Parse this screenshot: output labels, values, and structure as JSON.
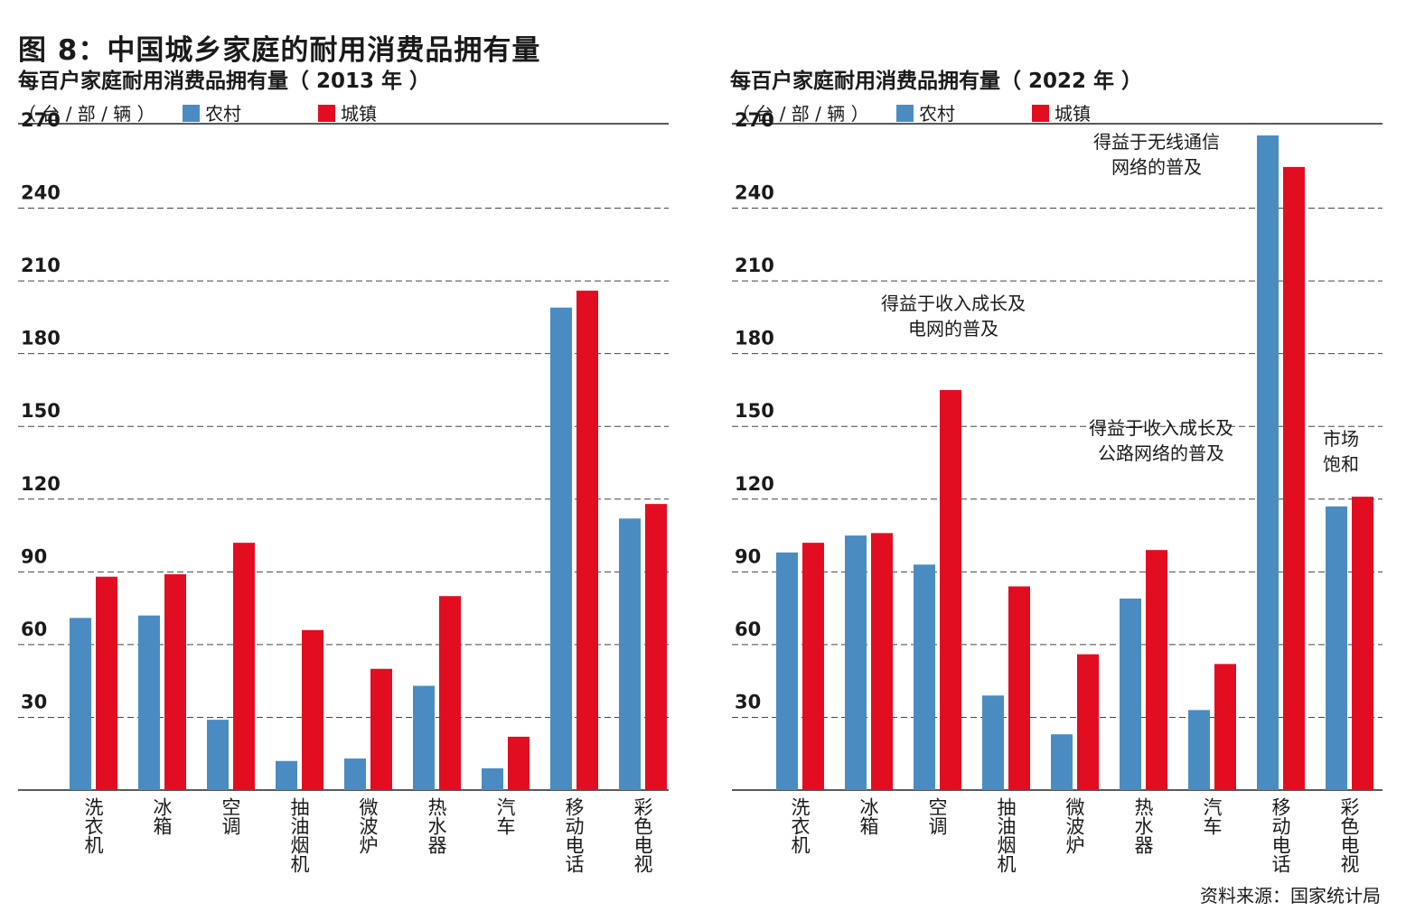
{
  "title": "图 8：中国城乡家庭的耐用消费品拥有量",
  "unit_label": "（ 台 / 部 / 辆 ）",
  "legend": {
    "rural": "农村",
    "urban": "城镇"
  },
  "colors": {
    "rural": "#4a8cc2",
    "urban": "#e30d22",
    "grid": "#444444",
    "axis": "#222222"
  },
  "source": "资料来源：国家统计局",
  "chart_data": [
    {
      "type": "bar",
      "title": "每百户家庭耐用消费品拥有量（ 2013 年 ）",
      "ylabel": "（ 台 / 部 / 辆 ）",
      "ylim": [
        0,
        270
      ],
      "yticks": [
        30,
        60,
        90,
        120,
        150,
        180,
        210,
        240,
        270
      ],
      "grid": true,
      "categories": [
        "洗衣机",
        "冰箱",
        "空调",
        "抽油烟机",
        "微波炉",
        "热水器",
        "汽车",
        "移动电话",
        "彩色电视"
      ],
      "series": [
        {
          "name": "农村",
          "values": [
            71,
            72,
            29,
            12,
            13,
            43,
            9,
            199,
            112
          ]
        },
        {
          "name": "城镇",
          "values": [
            88,
            89,
            102,
            66,
            50,
            80,
            22,
            206,
            118
          ]
        }
      ],
      "annotations": []
    },
    {
      "type": "bar",
      "title": "每百户家庭耐用消费品拥有量（ 2022 年 ）",
      "ylabel": "（ 台 / 部 / 辆 ）",
      "ylim": [
        0,
        270
      ],
      "yticks": [
        30,
        60,
        90,
        120,
        150,
        180,
        210,
        240,
        270
      ],
      "grid": true,
      "categories": [
        "洗衣机",
        "冰箱",
        "空调",
        "抽油烟机",
        "微波炉",
        "热水器",
        "汽车",
        "移动电话",
        "彩色电视"
      ],
      "series": [
        {
          "name": "农村",
          "values": [
            98,
            105,
            93,
            39,
            23,
            79,
            33,
            270,
            117
          ]
        },
        {
          "name": "城镇",
          "values": [
            102,
            106,
            165,
            84,
            56,
            99,
            52,
            257,
            121
          ]
        }
      ],
      "annotations": [
        {
          "category": "空调",
          "lines": [
            "得益于收入成长及",
            "电网的普及"
          ]
        },
        {
          "category": "汽车",
          "lines": [
            "得益于收入成长及",
            "公路网络的普及"
          ]
        },
        {
          "category": "移动电话",
          "lines": [
            "得益于无线通信",
            "网络的普及"
          ]
        },
        {
          "category": "彩色电视",
          "lines": [
            "市场",
            "饱和"
          ]
        }
      ]
    }
  ]
}
